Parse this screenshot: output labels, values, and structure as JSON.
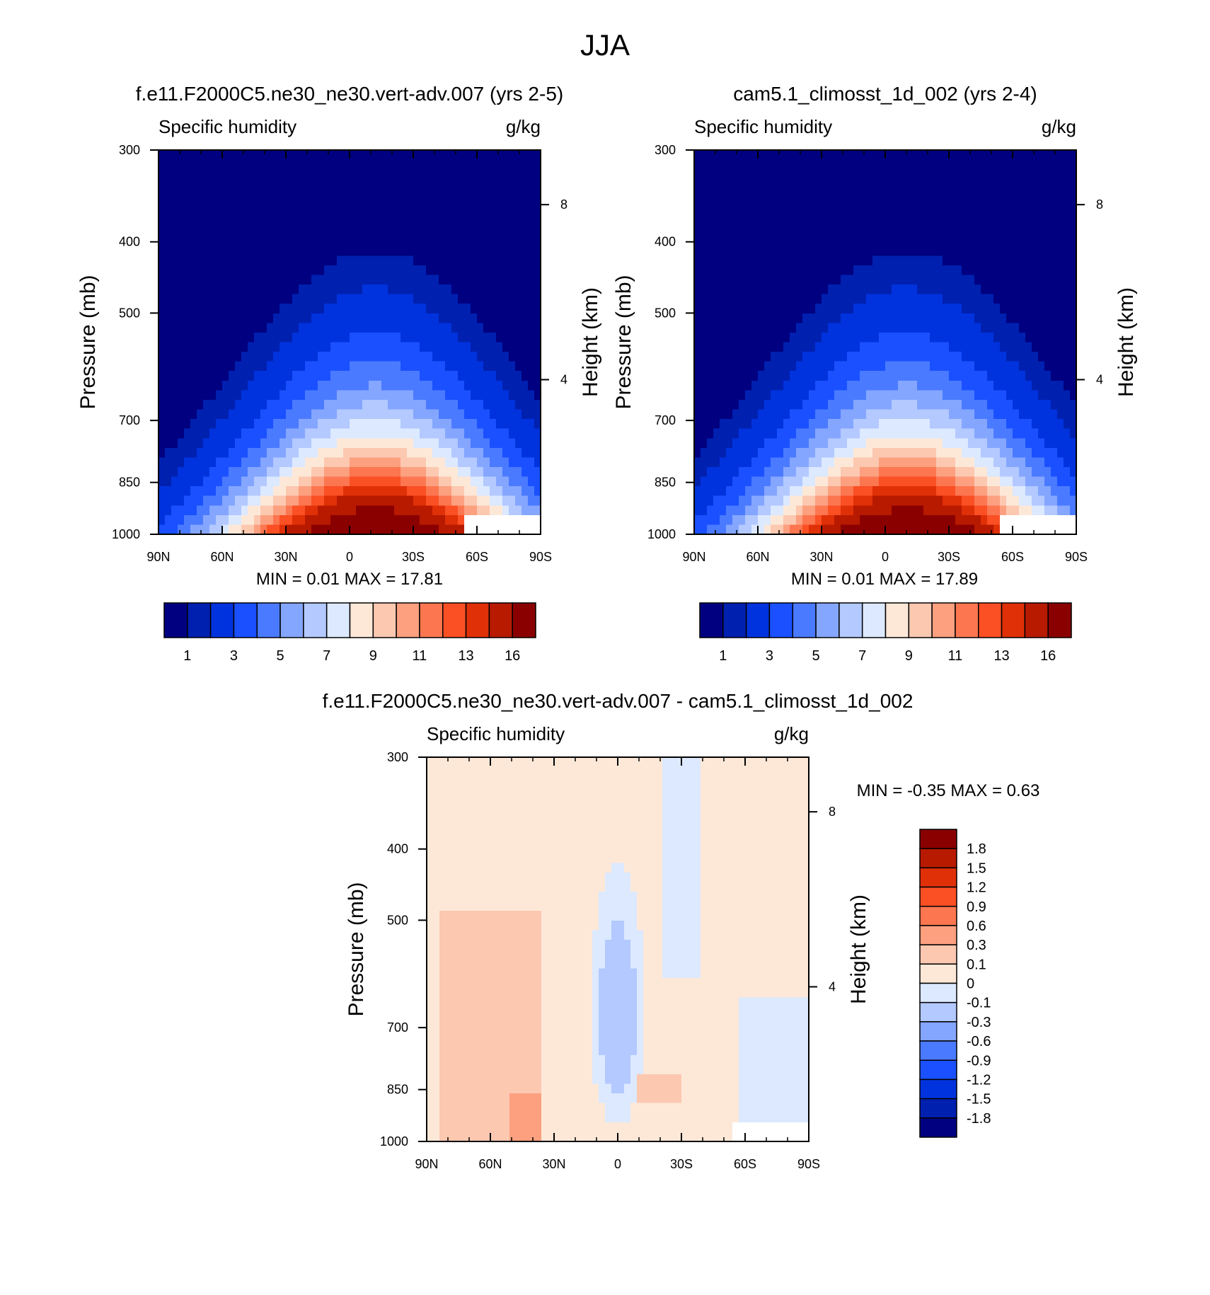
{
  "figure": {
    "title": "JJA"
  },
  "chart_data": [
    {
      "type": "contour",
      "case_title": "f.e11.F2000C5.ne30_ne30.vert-adv.007 (yrs 2-5)",
      "variable": "Specific humidity",
      "units": "g/kg",
      "ylabel": "Pressure (mb)",
      "y2label": "Height (km)",
      "x_ticks": [
        "90N",
        "60N",
        "30N",
        "0",
        "30S",
        "60S",
        "90S"
      ],
      "y_ticks": [
        "300",
        "400",
        "500",
        "700",
        "850",
        "1000"
      ],
      "y2_ticks": [
        "8",
        "4"
      ],
      "min_label": "MIN =",
      "min_value": "0.01",
      "max_label": "MAX =",
      "max_value": "17.81",
      "colorbar_labels": [
        "1",
        "3",
        "5",
        "7",
        "9",
        "11",
        "13",
        "16"
      ],
      "colors": [
        "#000080",
        "#0020b0",
        "#0033dd",
        "#1a50ff",
        "#4a7aff",
        "#85a6ff",
        "#b3c9ff",
        "#dce9ff",
        "#fde8d8",
        "#fcc8b0",
        "#fca080",
        "#fc7650",
        "#fb4f24",
        "#e03008",
        "#b81a00",
        "#8a0000"
      ],
      "peak_lat": -12,
      "peak_scale": 1.0
    },
    {
      "type": "contour",
      "case_title": "cam5.1_climosst_1d_002 (yrs 2-4)",
      "variable": "Specific humidity",
      "units": "g/kg",
      "ylabel": "Pressure (mb)",
      "y2label": "Height (km)",
      "x_ticks": [
        "90N",
        "60N",
        "30N",
        "0",
        "30S",
        "60S",
        "90S"
      ],
      "y_ticks": [
        "300",
        "400",
        "500",
        "700",
        "850",
        "1000"
      ],
      "y2_ticks": [
        "8",
        "4"
      ],
      "min_label": "MIN =",
      "min_value": "0.01",
      "max_label": "MAX =",
      "max_value": "17.89",
      "colorbar_labels": [
        "1",
        "3",
        "5",
        "7",
        "9",
        "11",
        "13",
        "16"
      ],
      "colors": [
        "#000080",
        "#0020b0",
        "#0033dd",
        "#1a50ff",
        "#4a7aff",
        "#85a6ff",
        "#b3c9ff",
        "#dce9ff",
        "#fde8d8",
        "#fcc8b0",
        "#fca080",
        "#fc7650",
        "#fb4f24",
        "#e03008",
        "#b81a00",
        "#8a0000"
      ],
      "peak_lat": -10,
      "peak_scale": 1.0
    },
    {
      "type": "contour-difference",
      "case_title": "f.e11.F2000C5.ne30_ne30.vert-adv.007 - cam5.1_climosst_1d_002",
      "variable": "Specific humidity",
      "units": "g/kg",
      "ylabel": "Pressure (mb)",
      "y2label": "Height (km)",
      "x_ticks": [
        "90N",
        "60N",
        "30N",
        "0",
        "30S",
        "60S",
        "90S"
      ],
      "y_ticks": [
        "300",
        "400",
        "500",
        "700",
        "850",
        "1000"
      ],
      "y2_ticks": [
        "8",
        "4"
      ],
      "min_label": "MIN =",
      "min_value": "-0.35",
      "max_label": "MAX =",
      "max_value": "0.63",
      "colorbar_labels": [
        "1.8",
        "1.5",
        "1.2",
        "0.9",
        "0.6",
        "0.3",
        "0.1",
        "0",
        "-0.1",
        "-0.3",
        "-0.6",
        "-0.9",
        "-1.2",
        "-1.5",
        "-1.8"
      ],
      "colors": [
        "#8a0000",
        "#b81a00",
        "#e03008",
        "#fb4f24",
        "#fc7650",
        "#fca080",
        "#fcc8b0",
        "#fde8d8",
        "#dce9ff",
        "#b3c9ff",
        "#85a6ff",
        "#4a7aff",
        "#1a50ff",
        "#0033dd",
        "#0020b0",
        "#000080"
      ]
    }
  ]
}
